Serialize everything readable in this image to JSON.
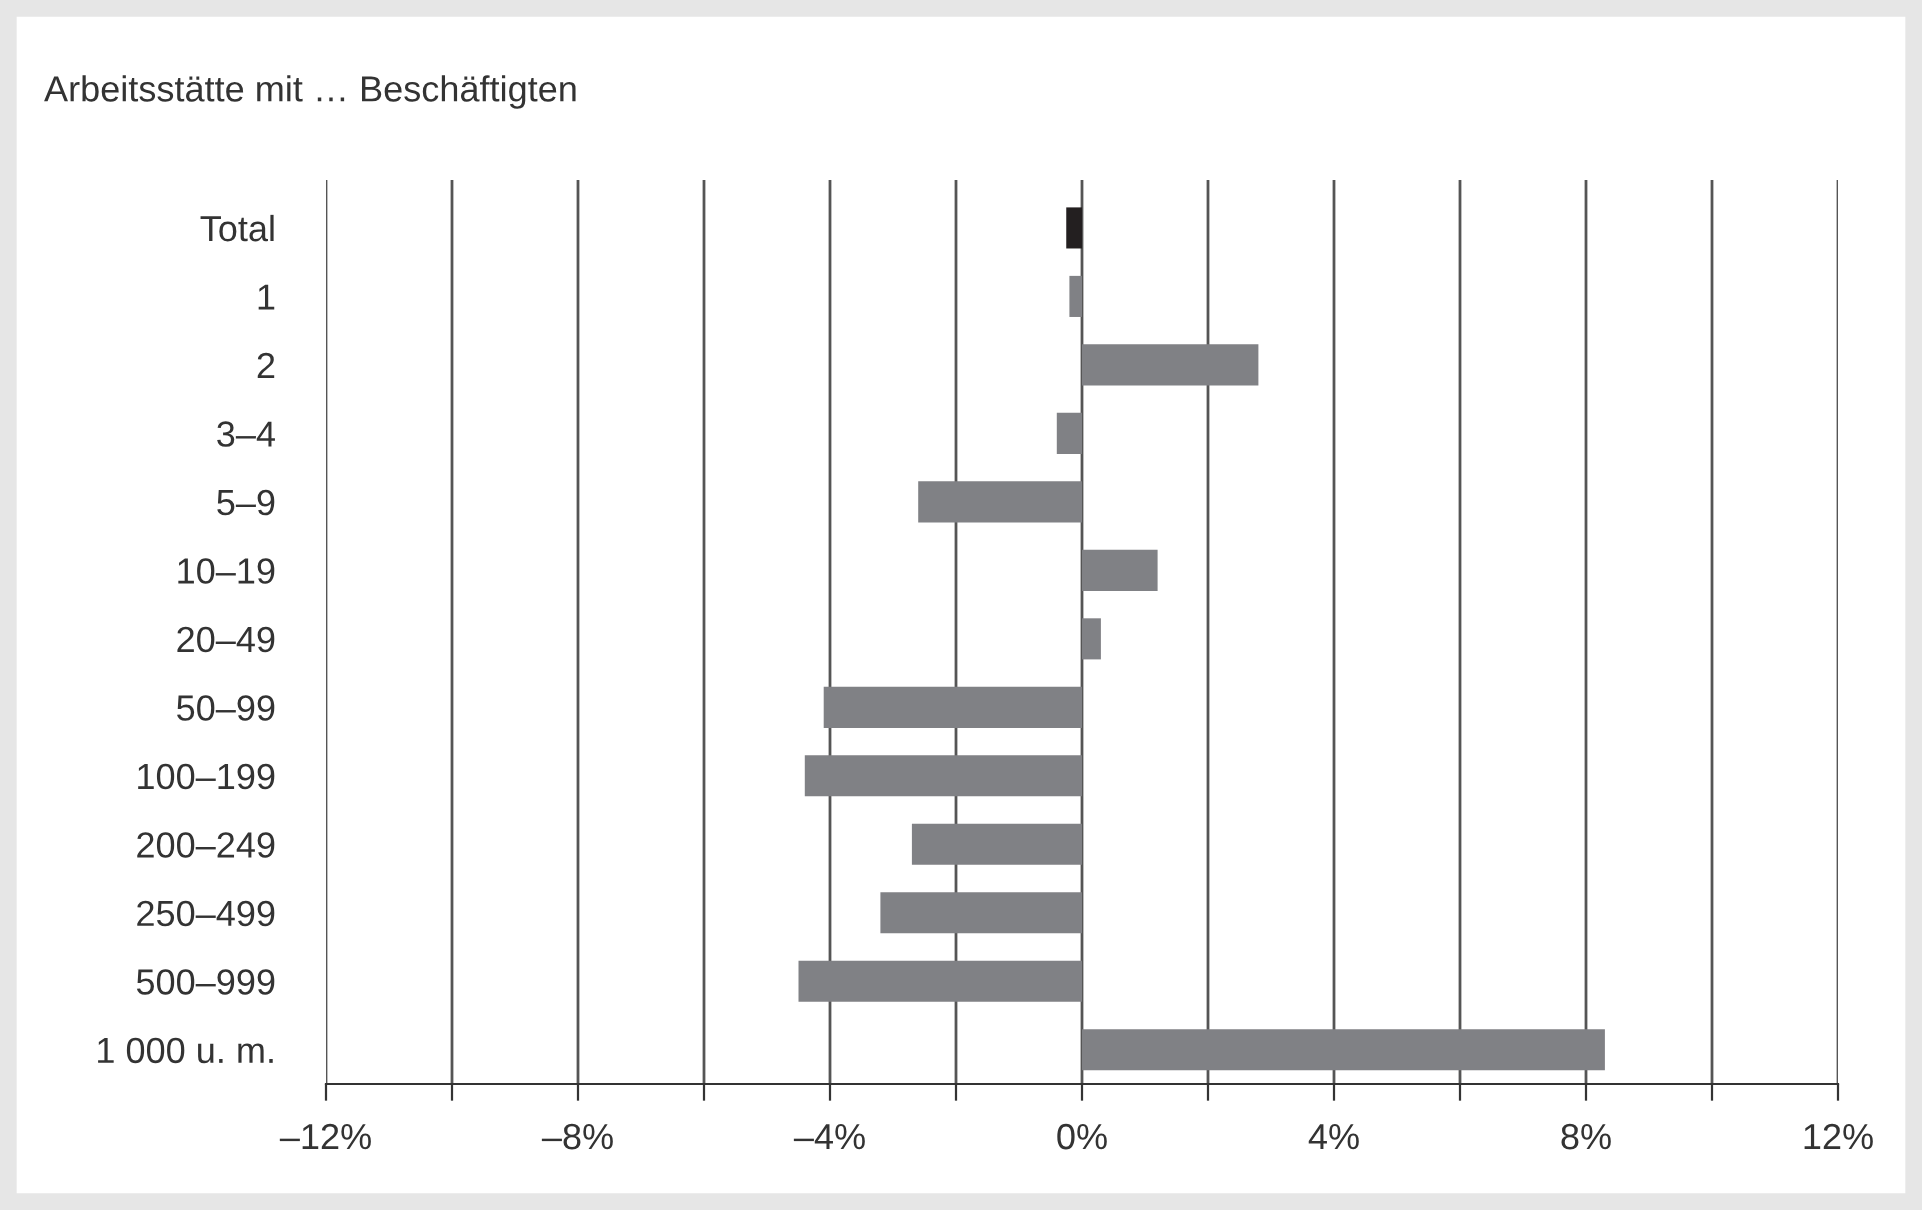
{
  "chart_data": {
    "type": "bar",
    "orientation": "horizontal",
    "title": "Arbeitsstätte mit … Beschäftigten",
    "categories": [
      "Total",
      "1",
      "2",
      "3–4",
      "5–9",
      "10–19",
      "20–49",
      "50–99",
      "100–199",
      "200–249",
      "250–499",
      "500–999",
      "1 000 u. m."
    ],
    "values": [
      -0.25,
      -0.2,
      2.8,
      -0.4,
      -2.6,
      1.2,
      0.3,
      -4.1,
      -4.4,
      -2.7,
      -3.2,
      -4.5,
      8.3
    ],
    "colors": [
      "#231f20",
      "#808185",
      "#808185",
      "#808185",
      "#808185",
      "#808185",
      "#808185",
      "#808185",
      "#808185",
      "#808185",
      "#808185",
      "#808185",
      "#808185"
    ],
    "xlim": [
      -12,
      12
    ],
    "xticks": [
      {
        "value": -12,
        "label": "–12%"
      },
      {
        "value": -10,
        "label": null
      },
      {
        "value": -8,
        "label": "–8%"
      },
      {
        "value": -6,
        "label": null
      },
      {
        "value": -4,
        "label": "–4%"
      },
      {
        "value": -2,
        "label": null
      },
      {
        "value": 0,
        "label": "0%"
      },
      {
        "value": 2,
        "label": null
      },
      {
        "value": 4,
        "label": "4%"
      },
      {
        "value": 6,
        "label": null
      },
      {
        "value": 8,
        "label": "8%"
      },
      {
        "value": 10,
        "label": null
      },
      {
        "value": 12,
        "label": "12%"
      }
    ],
    "grid": "x"
  }
}
